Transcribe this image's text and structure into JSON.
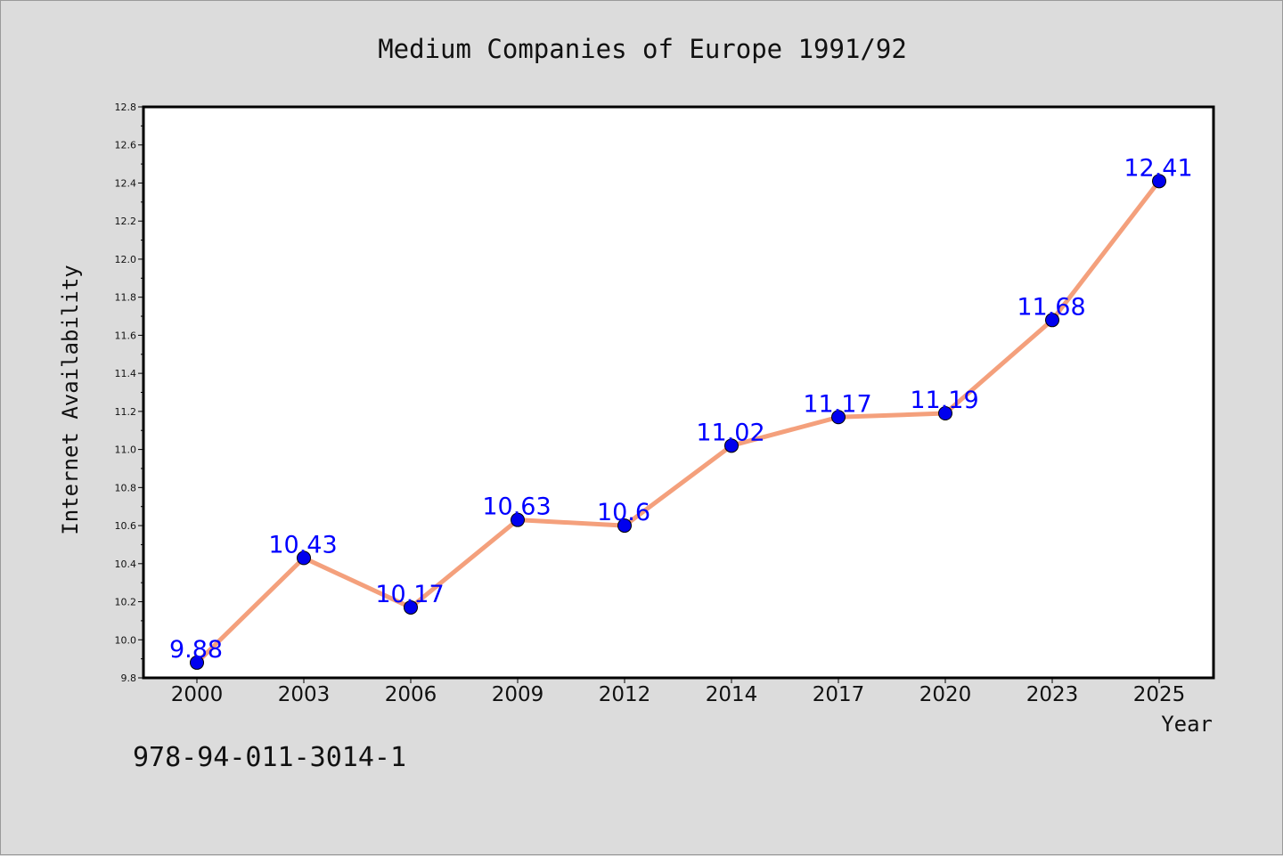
{
  "chart_data": {
    "type": "line",
    "title": "Medium Companies of Europe 1991/92",
    "xlabel": "Year",
    "ylabel": "Internet Availability",
    "categories": [
      "2000",
      "2003",
      "2006",
      "2009",
      "2012",
      "2014",
      "2017",
      "2020",
      "2023",
      "2025"
    ],
    "series": [
      {
        "values": [
          9.88,
          10.43,
          10.17,
          10.63,
          10.6,
          11.02,
          11.17,
          11.19,
          11.68,
          12.41
        ],
        "labels": [
          "9.88",
          "10.43",
          "10.17",
          "10.63",
          "10.6",
          "11.02",
          "11.17",
          "11.19",
          "11.68",
          "12.41"
        ],
        "line_color": "#f4a07c",
        "marker_color": "#0000ee",
        "label_color": "#0000ff"
      }
    ],
    "ylim": [
      9.8,
      12.8
    ],
    "yticks": [
      "9.8",
      "10.0",
      "10.2",
      "10.4",
      "10.6",
      "10.8",
      "11.0",
      "11.2",
      "11.4",
      "11.6",
      "11.8",
      "12.0",
      "12.2",
      "12.4",
      "12.6",
      "12.8"
    ],
    "grid": false,
    "legend": "none"
  },
  "footer": {
    "code": "978-94-011-3014-1"
  }
}
